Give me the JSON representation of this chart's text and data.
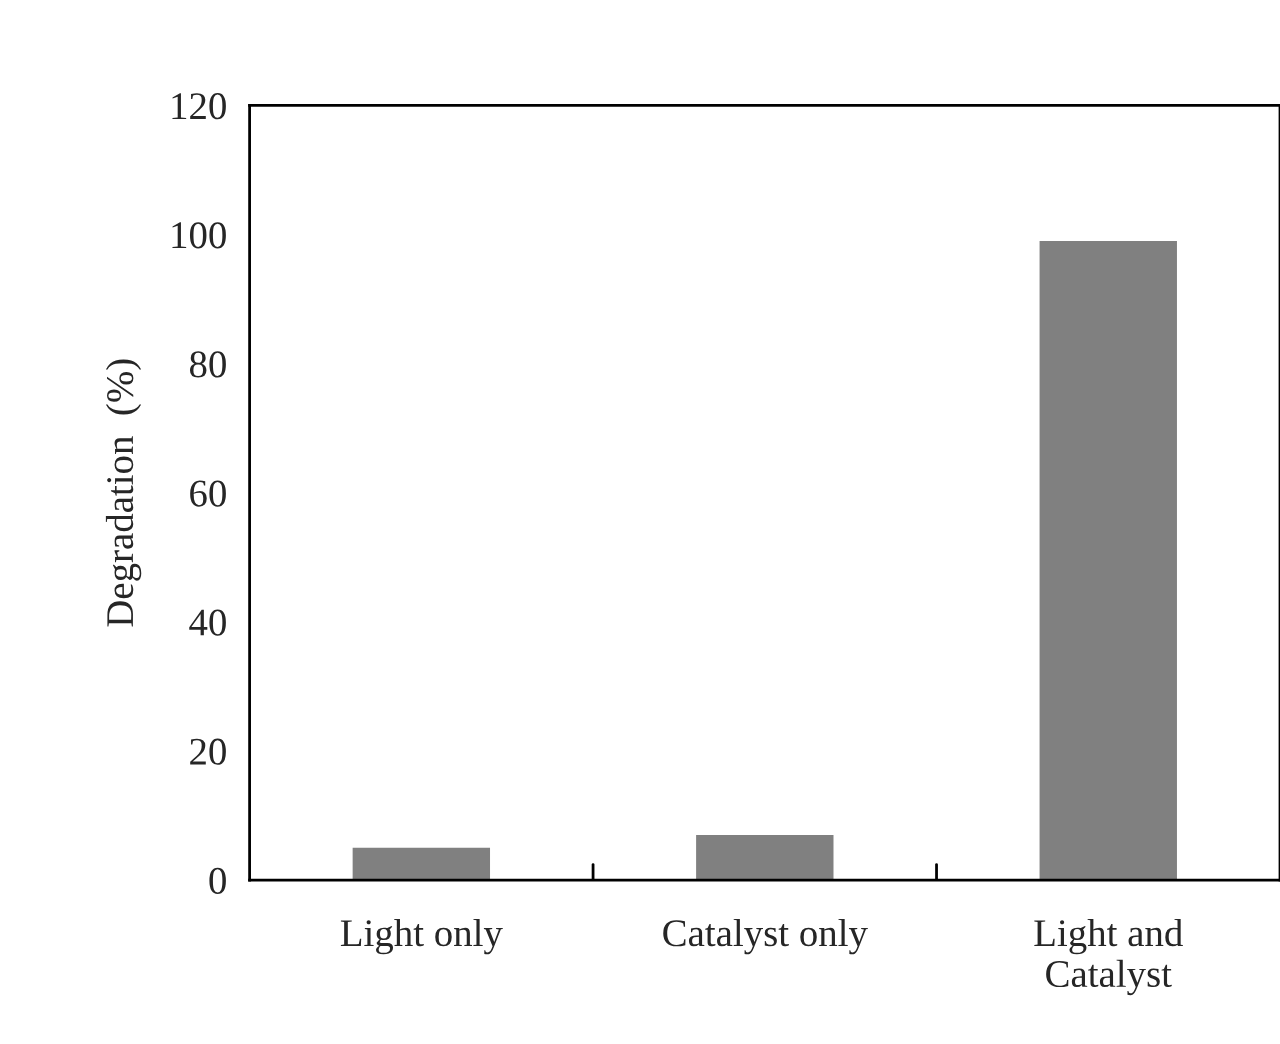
{
  "chart_data": {
    "type": "bar",
    "categories": [
      "Light only",
      "Catalyst only",
      "Light and\nCatalyst"
    ],
    "values": [
      5,
      7,
      99
    ],
    "color": "#808080",
    "ylabel": "Degradation  (%)",
    "ylim": [
      0,
      120
    ],
    "yticks": [
      0,
      20,
      40,
      60,
      80,
      100,
      120
    ],
    "grid": false,
    "legend": false
  }
}
